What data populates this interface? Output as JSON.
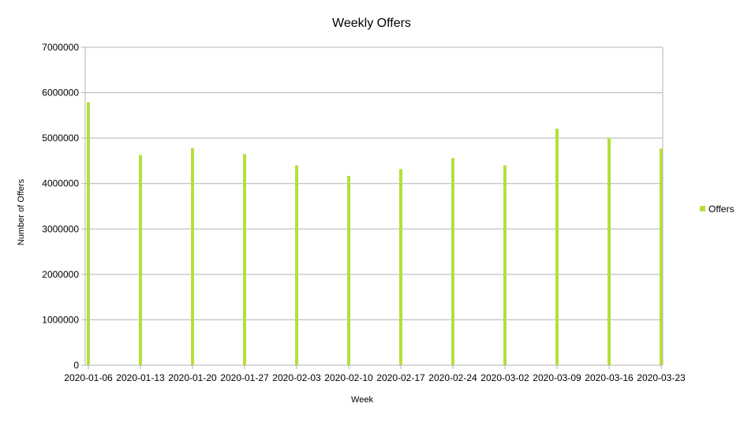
{
  "chart_data": {
    "type": "bar",
    "title": "Weekly Offers",
    "xlabel": "Week",
    "ylabel": "Number of Offers",
    "categories": [
      "2020-01-06",
      "2020-01-13",
      "2020-01-20",
      "2020-01-27",
      "2020-02-03",
      "2020-02-10",
      "2020-02-17",
      "2020-02-24",
      "2020-03-02",
      "2020-03-09",
      "2020-03-16",
      "2020-03-23"
    ],
    "series": [
      {
        "name": "Offers",
        "color": "#b3e03a",
        "values": [
          5790000,
          4630000,
          4780000,
          4650000,
          4400000,
          4170000,
          4320000,
          4560000,
          4400000,
          5210000,
          5000000,
          4770000
        ]
      }
    ],
    "ylim": [
      0,
      7000000
    ],
    "yticks": [
      0,
      1000000,
      2000000,
      3000000,
      4000000,
      5000000,
      6000000,
      7000000
    ],
    "grid": true,
    "legend": "right"
  }
}
